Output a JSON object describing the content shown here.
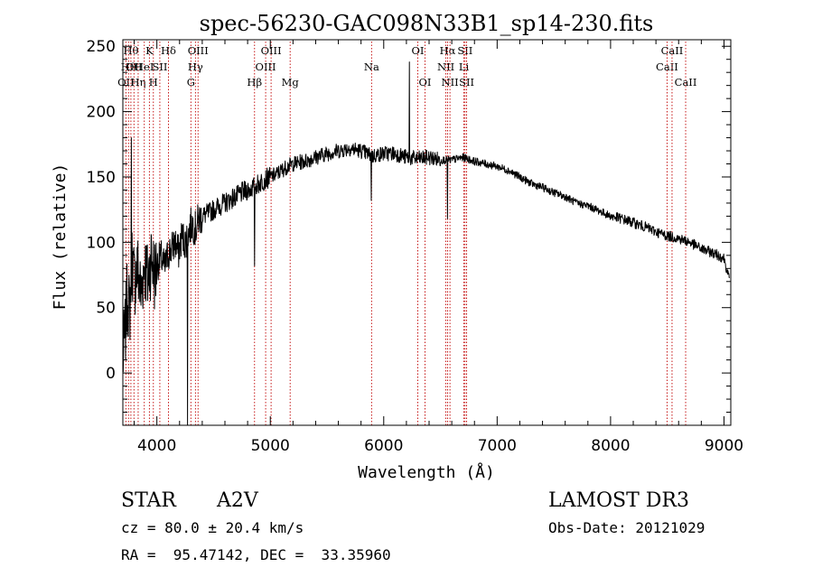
{
  "colors": {
    "background": "#ffffff",
    "ink": "#000000",
    "line_marker": "#c00000"
  },
  "chart_data": {
    "type": "line",
    "title": "spec-56230-GAC098N33B1_sp14-230.fits",
    "xlabel": "Wavelength (Å)",
    "ylabel": "Flux (relative)",
    "xlim": [
      3700,
      9060
    ],
    "ylim": [
      -40,
      255
    ],
    "x_ticks": [
      4000,
      5000,
      6000,
      7000,
      8000,
      9000
    ],
    "x_tick_labels": [
      "4000",
      "5000",
      "6000",
      "7000",
      "8000",
      "9000"
    ],
    "y_ticks": [
      0,
      50,
      100,
      150,
      200,
      250
    ],
    "y_tick_labels": [
      "0",
      "50",
      "100",
      "150",
      "200",
      "250"
    ],
    "grid": false,
    "spectrum": {
      "name": "flux",
      "x": [
        3700,
        3720,
        3740,
        3760,
        3780,
        3800,
        3830,
        3860,
        3890,
        3920,
        3950,
        3980,
        4010,
        4040,
        4070,
        4100,
        4130,
        4160,
        4190,
        4220,
        4250,
        4280,
        4310,
        4340,
        4370,
        4400,
        4450,
        4500,
        4550,
        4600,
        4650,
        4700,
        4750,
        4800,
        4850,
        4900,
        4950,
        5000,
        5050,
        5100,
        5150,
        5200,
        5300,
        5400,
        5500,
        5600,
        5700,
        5800,
        5900,
        6000,
        6100,
        6200,
        6300,
        6400,
        6500,
        6600,
        6700,
        6800,
        6900,
        7000,
        7100,
        7200,
        7300,
        7400,
        7500,
        7600,
        7700,
        7800,
        7900,
        8000,
        8100,
        8200,
        8300,
        8400,
        8500,
        8600,
        8700,
        8800,
        8900,
        9000,
        9050
      ],
      "y": [
        10,
        30,
        60,
        45,
        90,
        70,
        80,
        60,
        85,
        70,
        90,
        75,
        85,
        88,
        80,
        92,
        95,
        100,
        92,
        105,
        100,
        108,
        115,
        110,
        118,
        120,
        122,
        125,
        128,
        130,
        133,
        135,
        138,
        140,
        142,
        145,
        148,
        150,
        152,
        155,
        158,
        160,
        162,
        165,
        168,
        170,
        172,
        170,
        166,
        168,
        168,
        165,
        164,
        165,
        163,
        163,
        165,
        162,
        160,
        158,
        155,
        150,
        145,
        142,
        138,
        135,
        130,
        128,
        124,
        120,
        118,
        115,
        112,
        108,
        105,
        103,
        100,
        95,
        92,
        88,
        70
      ]
    },
    "absorption_features": [
      {
        "x": 4270,
        "y": -40
      },
      {
        "x": 4861,
        "y": 82
      },
      {
        "x": 5890,
        "y": 132
      },
      {
        "x": 6563,
        "y": 118
      }
    ],
    "emission_features": [
      {
        "x": 3775,
        "y": 180
      },
      {
        "x": 6225,
        "y": 238
      }
    ],
    "line_markers": [
      {
        "wavelength": 3727,
        "label": "OII",
        "row": 2
      },
      {
        "wavelength": 3750,
        "label": "Hθ",
        "row": 1
      },
      {
        "wavelength": 3771,
        "label": "Hθ",
        "row": 0
      },
      {
        "wavelength": 3798,
        "label": "OII",
        "row": 1
      },
      {
        "wavelength": 3835,
        "label": "Hη",
        "row": 2
      },
      {
        "wavelength": 3889,
        "label": "HeI",
        "row": 1
      },
      {
        "wavelength": 3934,
        "label": "K",
        "row": 0
      },
      {
        "wavelength": 3969,
        "label": "H",
        "row": 2
      },
      {
        "wavelength": 4026,
        "label": "SII",
        "row": 1
      },
      {
        "wavelength": 4102,
        "label": "Hδ",
        "row": 0
      },
      {
        "wavelength": 4300,
        "label": "G",
        "row": 2
      },
      {
        "wavelength": 4340,
        "label": "Hγ",
        "row": 1
      },
      {
        "wavelength": 4363,
        "label": "OIII",
        "row": 0
      },
      {
        "wavelength": 4861,
        "label": "Hβ",
        "row": 2
      },
      {
        "wavelength": 4959,
        "label": "OIII",
        "row": 1
      },
      {
        "wavelength": 5007,
        "label": "OIII",
        "row": 0
      },
      {
        "wavelength": 5175,
        "label": "Mg",
        "row": 2
      },
      {
        "wavelength": 5893,
        "label": "Na",
        "row": 1
      },
      {
        "wavelength": 6300,
        "label": "OI",
        "row": 0
      },
      {
        "wavelength": 6364,
        "label": "OI",
        "row": 2
      },
      {
        "wavelength": 6548,
        "label": "NII",
        "row": 1
      },
      {
        "wavelength": 6563,
        "label": "Hα",
        "row": 0
      },
      {
        "wavelength": 6584,
        "label": "NII",
        "row": 2
      },
      {
        "wavelength": 6707,
        "label": "Li",
        "row": 1
      },
      {
        "wavelength": 6717,
        "label": "SII",
        "row": 0
      },
      {
        "wavelength": 6731,
        "label": "SII",
        "row": 2
      },
      {
        "wavelength": 8498,
        "label": "CaII",
        "row": 1
      },
      {
        "wavelength": 8542,
        "label": "CaII",
        "row": 0
      },
      {
        "wavelength": 8662,
        "label": "CaII",
        "row": 2
      }
    ]
  },
  "info": {
    "object_class": "STAR",
    "subclass": "A2V",
    "survey": "LAMOST DR3",
    "redshift_text": "cz = 80.0 ± 20.4 km/s",
    "obs_date": "Obs-Date: 20121029",
    "coords": "RA =  95.47142, DEC =  33.35960"
  }
}
